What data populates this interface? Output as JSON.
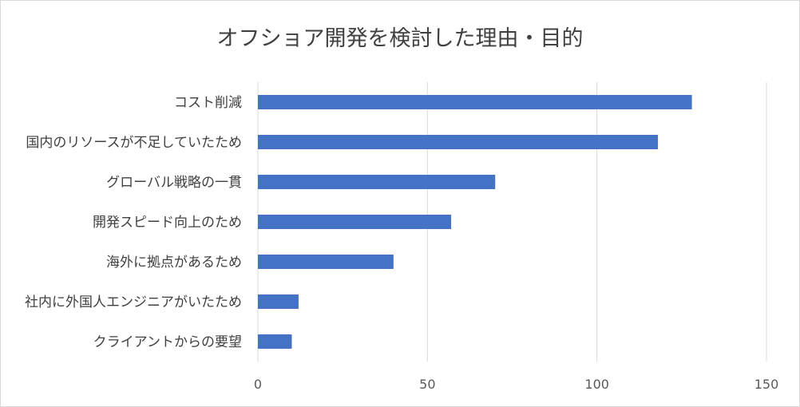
{
  "chart_data": {
    "type": "bar",
    "orientation": "horizontal",
    "title": "オフショア開発を検討した理由・目的",
    "categories": [
      "コスト削減",
      "国内のリソースが不足していたため",
      "グローバル戦略の一貫",
      "開発スピード向上のため",
      "海外に拠点があるため",
      "社内に外国人エンジニアがいたため",
      "クライアントからの要望"
    ],
    "values": [
      128,
      118,
      70,
      57,
      40,
      12,
      10
    ],
    "xlim": [
      0,
      150
    ],
    "xticks": [
      0,
      50,
      100,
      150
    ],
    "grid": true,
    "legend": "none",
    "bar_color": "#4472c4"
  }
}
